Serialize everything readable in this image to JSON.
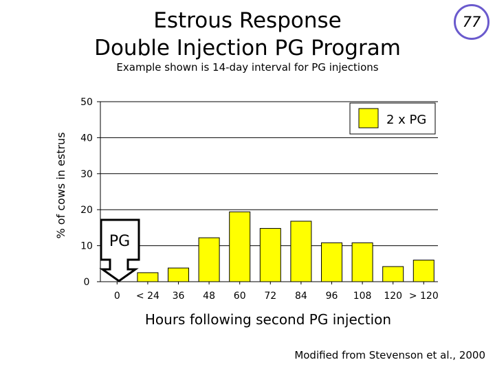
{
  "slide": {
    "title_line1": "Estrous Response",
    "title_line2": "Double Injection PG Program",
    "subtitle": "Example shown is 14-day interval for PG injections",
    "slide_number": "77",
    "credit": "Modified from Stevenson et al., 2000",
    "arrow_label": "PG"
  },
  "chart_data": {
    "type": "bar",
    "categories": [
      "< 24",
      "36",
      "48",
      "60",
      "72",
      "84",
      "96",
      "108",
      "120",
      "> 120"
    ],
    "x_tick_labels": [
      "0",
      "< 24",
      "36",
      "48",
      "60",
      "72",
      "84",
      "96",
      "108",
      "120",
      "> 120"
    ],
    "series": [
      {
        "name": "2 x PG",
        "color": "#ffff00",
        "values": [
          2.5,
          3.8,
          12.2,
          19.4,
          14.8,
          16.8,
          10.8,
          10.8,
          4.2,
          6.0
        ]
      }
    ],
    "xlabel": "Hours following second PG injection",
    "ylabel": "% of cows in estrus",
    "ylim": [
      0,
      50
    ],
    "yticks": [
      0,
      10,
      20,
      30,
      40,
      50
    ],
    "grid": true,
    "legend_position": "top-right"
  }
}
